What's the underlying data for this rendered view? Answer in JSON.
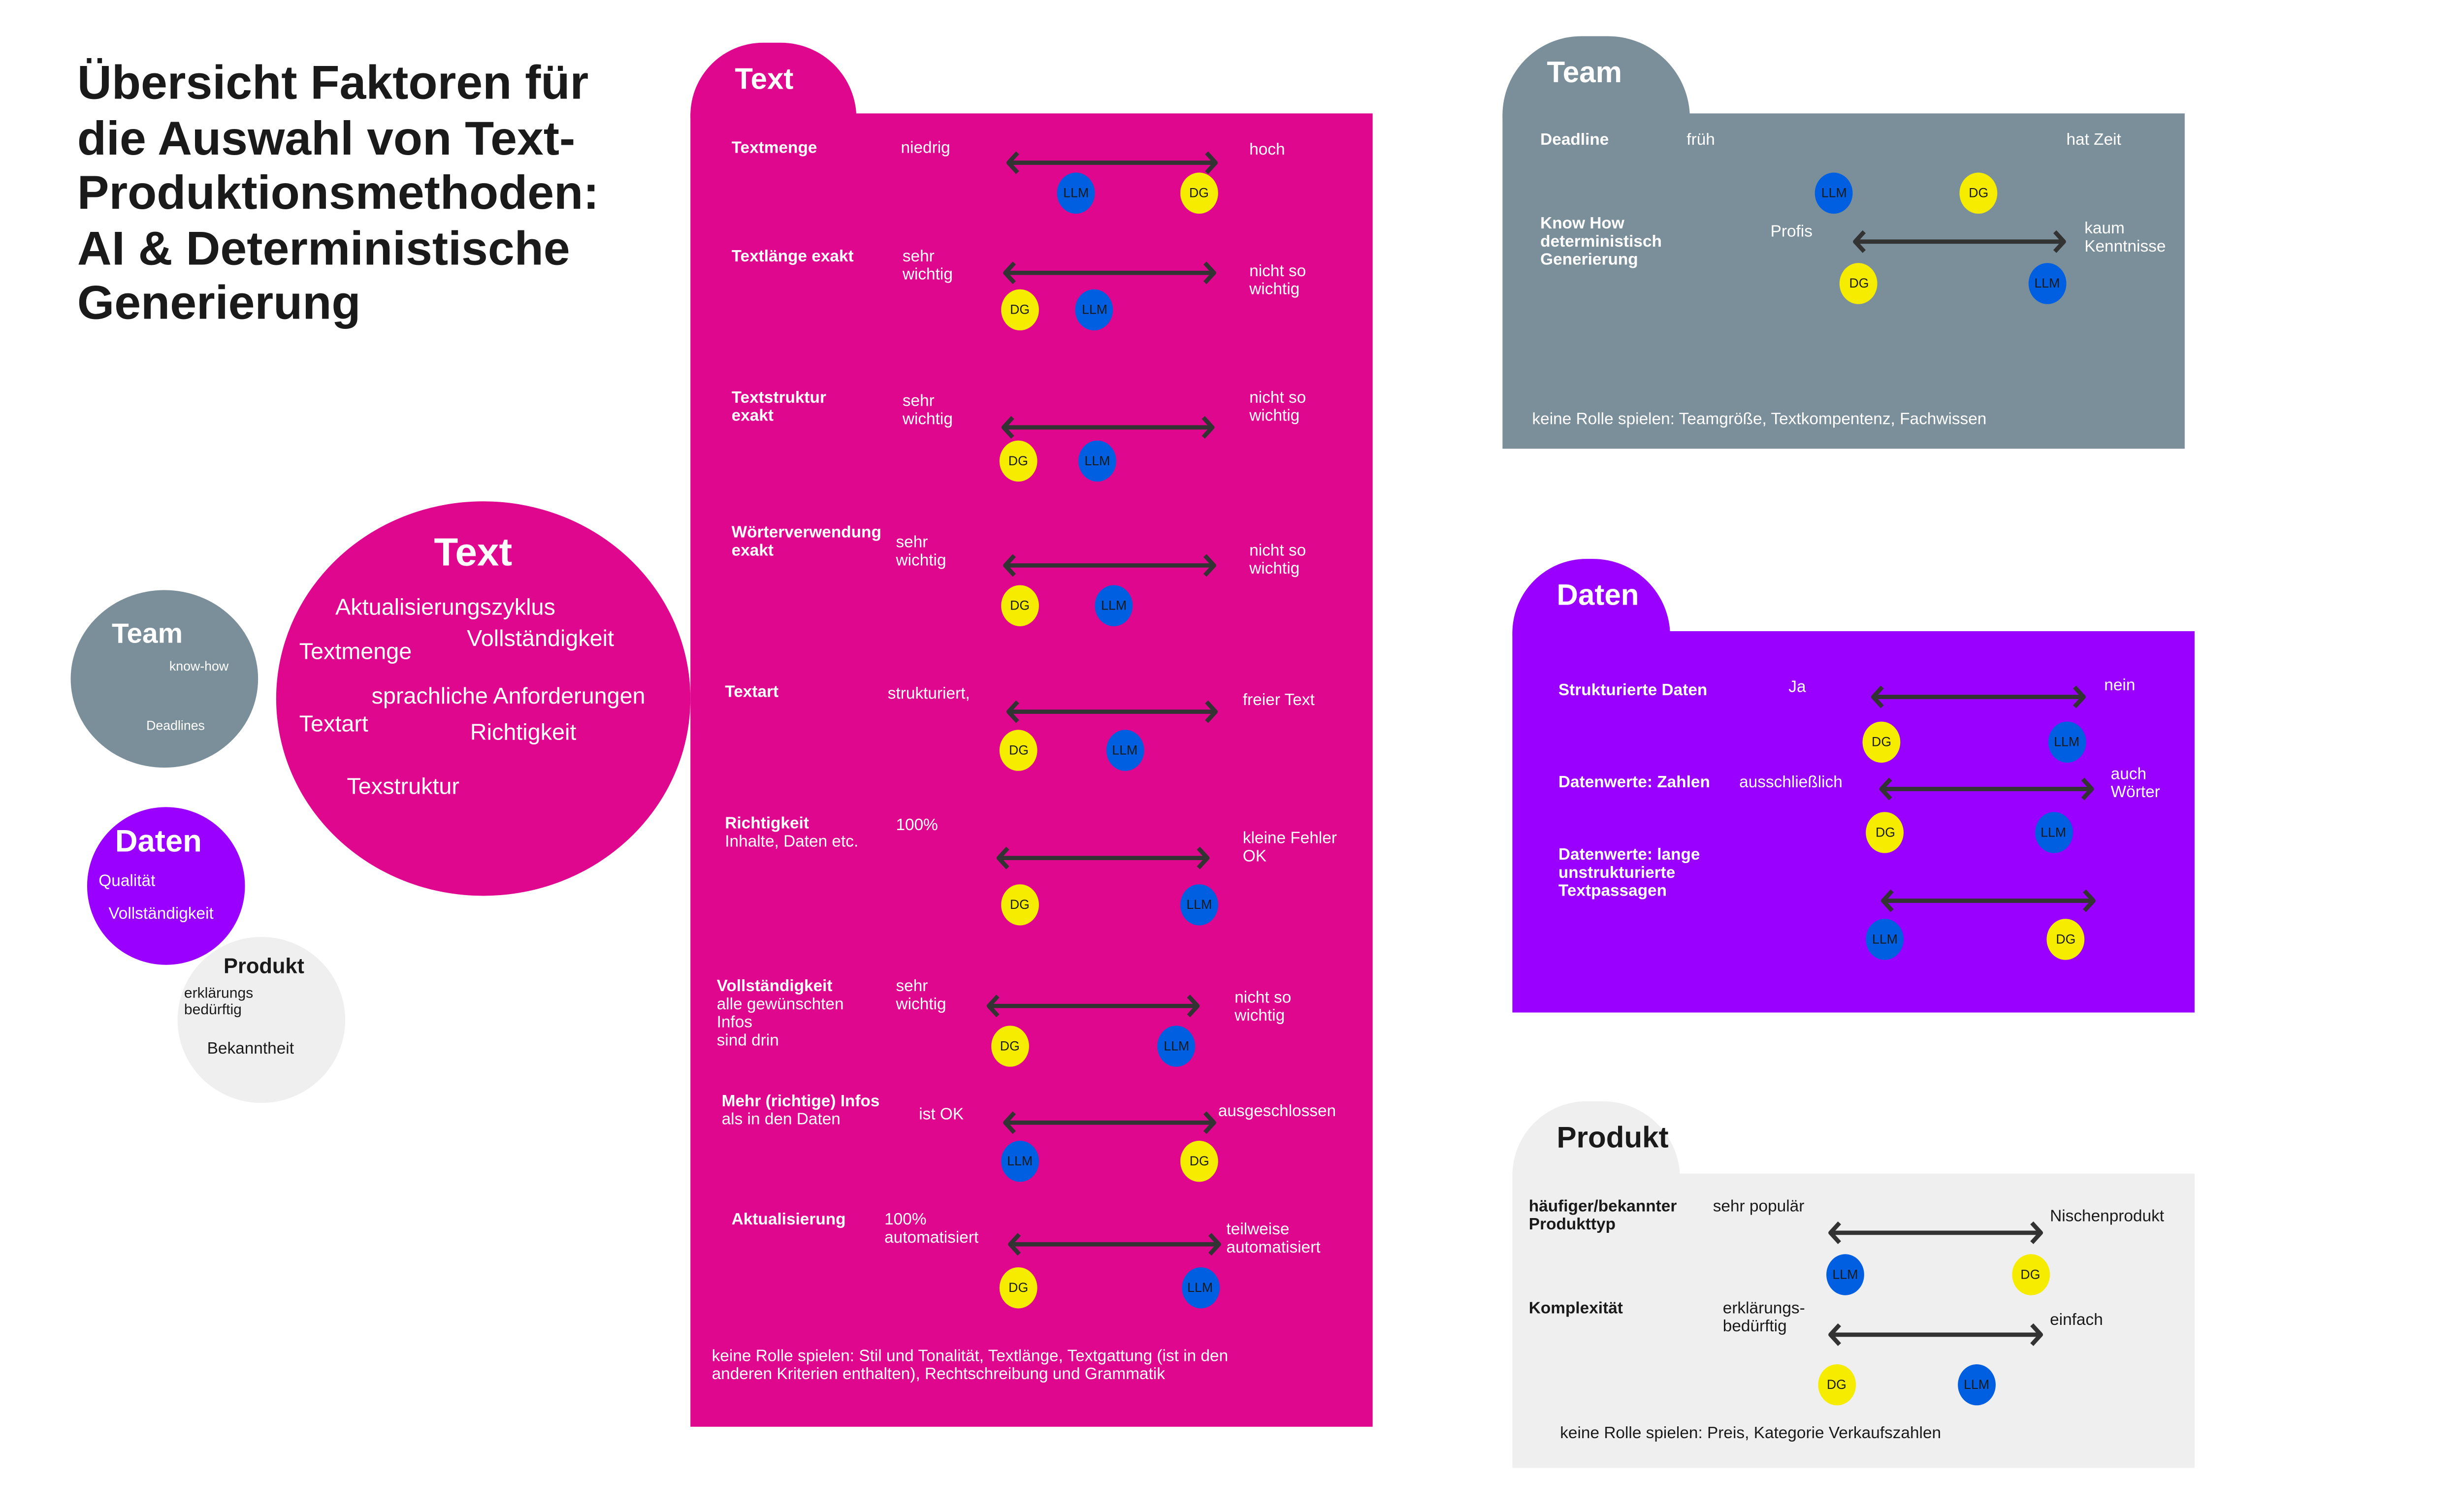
{
  "title_lines": [
    "Übersicht Faktoren für",
    "die Auswahl von Text-",
    "Produktionsmethoden:",
    "AI & Deterministische",
    "Generierung"
  ],
  "colors": {
    "text": "#e0078f",
    "team": "#7a8f99",
    "daten": "#9900ff",
    "produkt": "#efefef",
    "llm": "#005fe0",
    "dg": "#f5ec00",
    "arrow": "#333333"
  },
  "overview": {
    "team": {
      "title": "Team",
      "items": [
        "know-how",
        "Deadlines"
      ]
    },
    "text": {
      "title": "Text",
      "items": [
        "Aktualisierungszyklus",
        "Vollständigkeit",
        "Textmenge",
        "sprachliche Anforderungen",
        "Textart",
        "Richtigkeit",
        "Texstruktur"
      ]
    },
    "daten": {
      "title": "Daten",
      "items": [
        "Qualität",
        "Vollständigkeit"
      ]
    },
    "produkt": {
      "title": "Produkt",
      "items": [
        "erklärungs\nbedürftig",
        "Bekanntheit"
      ]
    }
  },
  "panels": {
    "text": {
      "title": "Text",
      "rows": [
        {
          "label": "Textmenge",
          "sub": "",
          "left": "niedrig",
          "right": "hoch",
          "dots": [
            {
              "label": "LLM",
              "pos": 0.33
            },
            {
              "label": "DG",
              "pos": 0.91
            }
          ]
        },
        {
          "label": "Textlänge exakt",
          "sub": "",
          "left": "sehr\nwichtig",
          "right": "nicht so\nwichtig",
          "dots": [
            {
              "label": "DG",
              "pos": 0.08
            },
            {
              "label": "LLM",
              "pos": 0.43
            }
          ]
        },
        {
          "label": "Textstruktur\nexakt",
          "sub": "",
          "left": "sehr\nwichtig",
          "right": "nicht so\nwichtig",
          "dots": [
            {
              "label": "DG",
              "pos": 0.08
            },
            {
              "label": "LLM",
              "pos": 0.45
            }
          ]
        },
        {
          "label": "Wörterverwendung\nexakt",
          "sub": "",
          "left": "sehr\nwichtig",
          "right": "nicht so\nwichtig",
          "dots": [
            {
              "label": "DG",
              "pos": 0.08
            },
            {
              "label": "LLM",
              "pos": 0.52
            }
          ]
        },
        {
          "label": "Textart",
          "sub": "",
          "left": "strukturiert,",
          "right": "freier Text",
          "dots": [
            {
              "label": "DG",
              "pos": 0.06
            },
            {
              "label": "LLM",
              "pos": 0.56
            }
          ]
        },
        {
          "label": "Richtigkeit",
          "sub": "Inhalte, Daten etc.",
          "left": "100%",
          "right": "kleine Fehler\nOK",
          "dots": [
            {
              "label": "DG",
              "pos": 0.11
            },
            {
              "label": "LLM",
              "pos": 0.95
            }
          ]
        },
        {
          "label": "Vollständigkeit",
          "sub": "alle gewünschten\nInfos\nsind drin",
          "left": "sehr\nwichtig",
          "right": "nicht so\nwichtig",
          "dots": [
            {
              "label": "DG",
              "pos": 0.11
            },
            {
              "label": "LLM",
              "pos": 0.89
            }
          ]
        },
        {
          "label": "Mehr (richtige) Infos",
          "sub": "als in den Daten",
          "left": "ist OK",
          "right": "ausgeschlossen",
          "dots": [
            {
              "label": "LLM",
              "pos": 0.08
            },
            {
              "label": "DG",
              "pos": 0.92
            }
          ]
        },
        {
          "label": "Aktualisierung",
          "sub": "",
          "left": "100%\nautomatisiert",
          "right": "teilweise\nautomatisiert",
          "dots": [
            {
              "label": "DG",
              "pos": 0.05
            },
            {
              "label": "LLM",
              "pos": 0.9
            }
          ]
        }
      ],
      "footer": "keine Rolle spielen: Stil und Tonalität,  Textlänge, Textgattung (ist in den\nanderen Kriterien enthalten), Rechtschreibung und Grammatik"
    },
    "team": {
      "title": "Team",
      "rows": [
        {
          "label": "Deadline",
          "sub": "",
          "left": "früh",
          "right": "hat Zeit",
          "dots": [
            {
              "label": "LLM",
              "pos": 0.1
            },
            {
              "label": "DG",
              "pos": 0.66
            }
          ]
        },
        {
          "label": "Know How\ndeterministisch\nGenerierung",
          "sub": "",
          "left": "Profis",
          "right": "kaum\nKenntnisse",
          "dots": [
            {
              "label": "DG",
              "pos": 0.03
            },
            {
              "label": "LLM",
              "pos": 0.91
            }
          ]
        }
      ],
      "footer": "keine Rolle spielen: Teamgröße, Textkompentenz, Fachwissen"
    },
    "daten": {
      "title": "Daten",
      "rows": [
        {
          "label": "Strukturierte Daten",
          "sub": "",
          "left": "Ja",
          "right": "nein",
          "dots": [
            {
              "label": "DG",
              "pos": 0.05
            },
            {
              "label": "LLM",
              "pos": 0.91
            }
          ]
        },
        {
          "label": "Datenwerte: Zahlen",
          "sub": "",
          "left": "ausschließlich",
          "right": "auch\nWörter",
          "dots": [
            {
              "label": "DG",
              "pos": 0.03
            },
            {
              "label": "LLM",
              "pos": 0.81
            }
          ]
        },
        {
          "label": "Datenwerte: lange\nunstrukturierte\nTextpassagen",
          "sub": "",
          "left": "",
          "right": "",
          "dots": [
            {
              "label": "LLM",
              "pos": 0.02
            },
            {
              "label": "DG",
              "pos": 0.86
            }
          ]
        }
      ],
      "footer": ""
    },
    "produkt": {
      "title": "Produkt",
      "rows": [
        {
          "label": "häufiger/bekannter\nProdukttyp",
          "sub": "",
          "left": "sehr populär",
          "right": "Nischenprodukt",
          "dots": [
            {
              "label": "LLM",
              "pos": 0.08
            },
            {
              "label": "DG",
              "pos": 0.94
            }
          ]
        },
        {
          "label": "Komplexität",
          "sub": "",
          "left": "erklärungs-\nbedürftig",
          "right": "einfach",
          "dots": [
            {
              "label": "DG",
              "pos": 0.04
            },
            {
              "label": "LLM",
              "pos": 0.69
            }
          ]
        }
      ],
      "footer": "keine Rolle spielen: Preis, Kategorie Verkaufszahlen"
    }
  }
}
